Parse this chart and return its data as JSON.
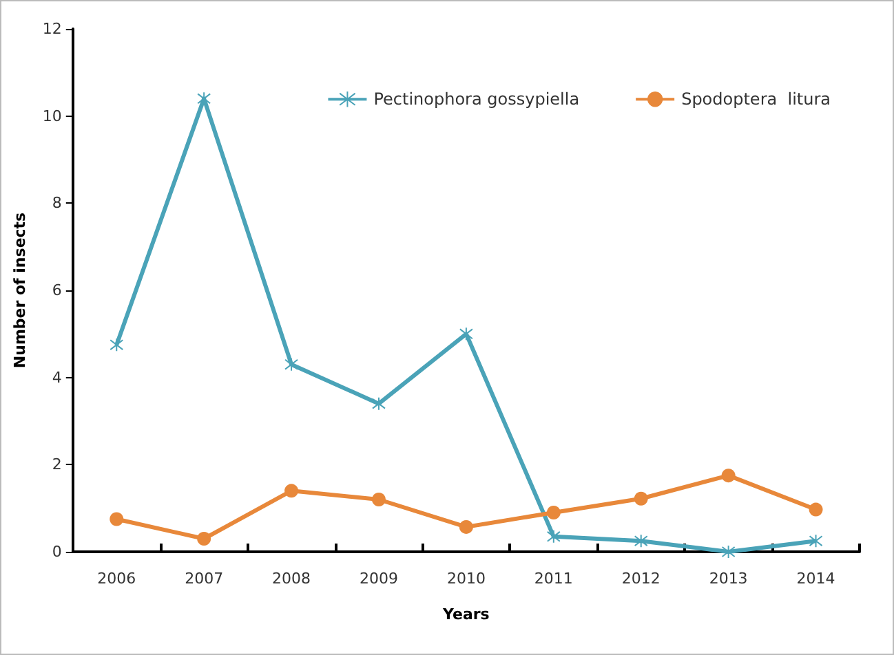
{
  "chart_data": {
    "type": "line",
    "xlabel": "Years",
    "ylabel": "Number of insects",
    "categories": [
      "2006",
      "2007",
      "2008",
      "2009",
      "2010",
      "2011",
      "2012",
      "2013",
      "2014"
    ],
    "series": [
      {
        "name": "Pectinophora gossypiella",
        "color": "#4aa3b8",
        "marker": "cross",
        "values": [
          4.75,
          10.4,
          4.3,
          3.4,
          5.0,
          0.35,
          0.25,
          0,
          0.25
        ]
      },
      {
        "name": "Spodoptera  litura",
        "color": "#e8883a",
        "marker": "circle",
        "values": [
          0.75,
          0.3,
          1.4,
          1.2,
          0.57,
          0.9,
          1.22,
          1.75,
          0.97
        ]
      }
    ],
    "ylim": [
      0,
      12
    ],
    "yticks": [
      0,
      2,
      4,
      6,
      8,
      10,
      12
    ],
    "grid": false,
    "legend": "top right"
  }
}
